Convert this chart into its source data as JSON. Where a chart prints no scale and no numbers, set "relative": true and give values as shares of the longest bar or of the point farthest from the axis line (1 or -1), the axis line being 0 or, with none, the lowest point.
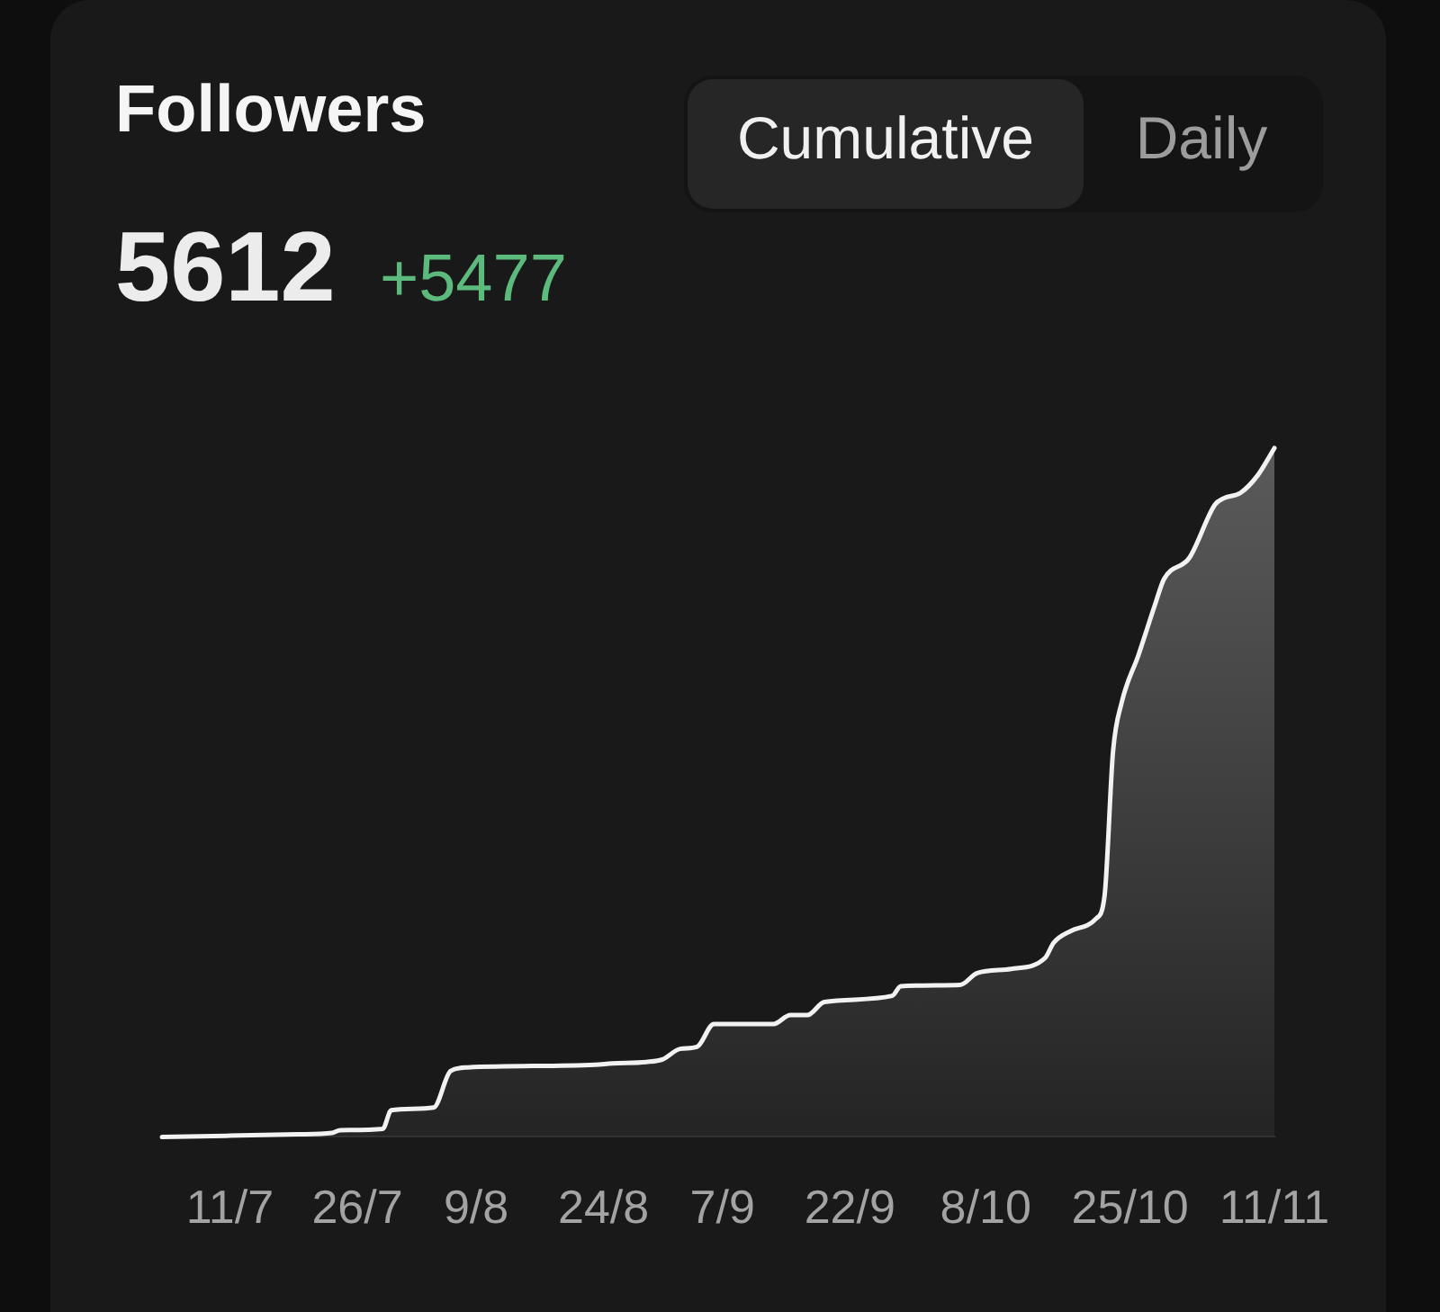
{
  "chart_data": {
    "type": "area",
    "title": "Followers",
    "annotations": [
      "5612",
      "+5477",
      "Cumulative",
      "Daily"
    ],
    "relative": true,
    "x": [
      "--07-03",
      "--07-19",
      "--07-23",
      "--07-24",
      "--07-29",
      "--07-30",
      "--08-04",
      "--08-06",
      "--08-08",
      "--08-23",
      "--08-25",
      "--08-29",
      "--08-31",
      "--09-02",
      "--09-04",
      "--09-06",
      "--09-13",
      "--09-15",
      "--09-17",
      "--09-19",
      "--09-27",
      "--09-28",
      "--10-05",
      "--10-07",
      "--10-11",
      "--10-15",
      "--10-16",
      "--10-18",
      "--10-21",
      "--10-22",
      "--10-23",
      "--10-24",
      "--10-26",
      "--10-28",
      "--10-29",
      "--11-01",
      "--11-04",
      "--11-05",
      "--11-07",
      "--11-09",
      "--11-11"
    ],
    "series": [
      {
        "color": "#f2f2f2",
        "values": [
          0,
          0.004,
          0.006,
          0.01,
          0.012,
          0.039,
          0.043,
          0.096,
          0.101,
          0.105,
          0.107,
          0.109,
          0.113,
          0.128,
          0.131,
          0.164,
          0.164,
          0.177,
          0.177,
          0.196,
          0.205,
          0.219,
          0.221,
          0.238,
          0.244,
          0.26,
          0.282,
          0.299,
          0.317,
          0.35,
          0.56,
          0.63,
          0.7,
          0.775,
          0.81,
          0.841,
          0.918,
          0.927,
          0.935,
          0.96,
          1
        ]
      }
    ],
    "xlim": [
      "--07-03",
      "--11-11"
    ],
    "xticks": [
      {
        "value": "--07-11",
        "label": "11/7"
      },
      {
        "value": "--07-26",
        "label": "26/7"
      },
      {
        "value": "--08-09",
        "label": "9/8"
      },
      {
        "value": "--08-24",
        "label": "24/8"
      },
      {
        "value": "--09-07",
        "label": "7/9"
      },
      {
        "value": "--09-22",
        "label": "22/9"
      },
      {
        "value": "--10-08",
        "label": "8/10"
      },
      {
        "value": "--10-25",
        "label": "25/10"
      },
      {
        "value": "--11-11",
        "label": "11/11"
      }
    ]
  }
}
